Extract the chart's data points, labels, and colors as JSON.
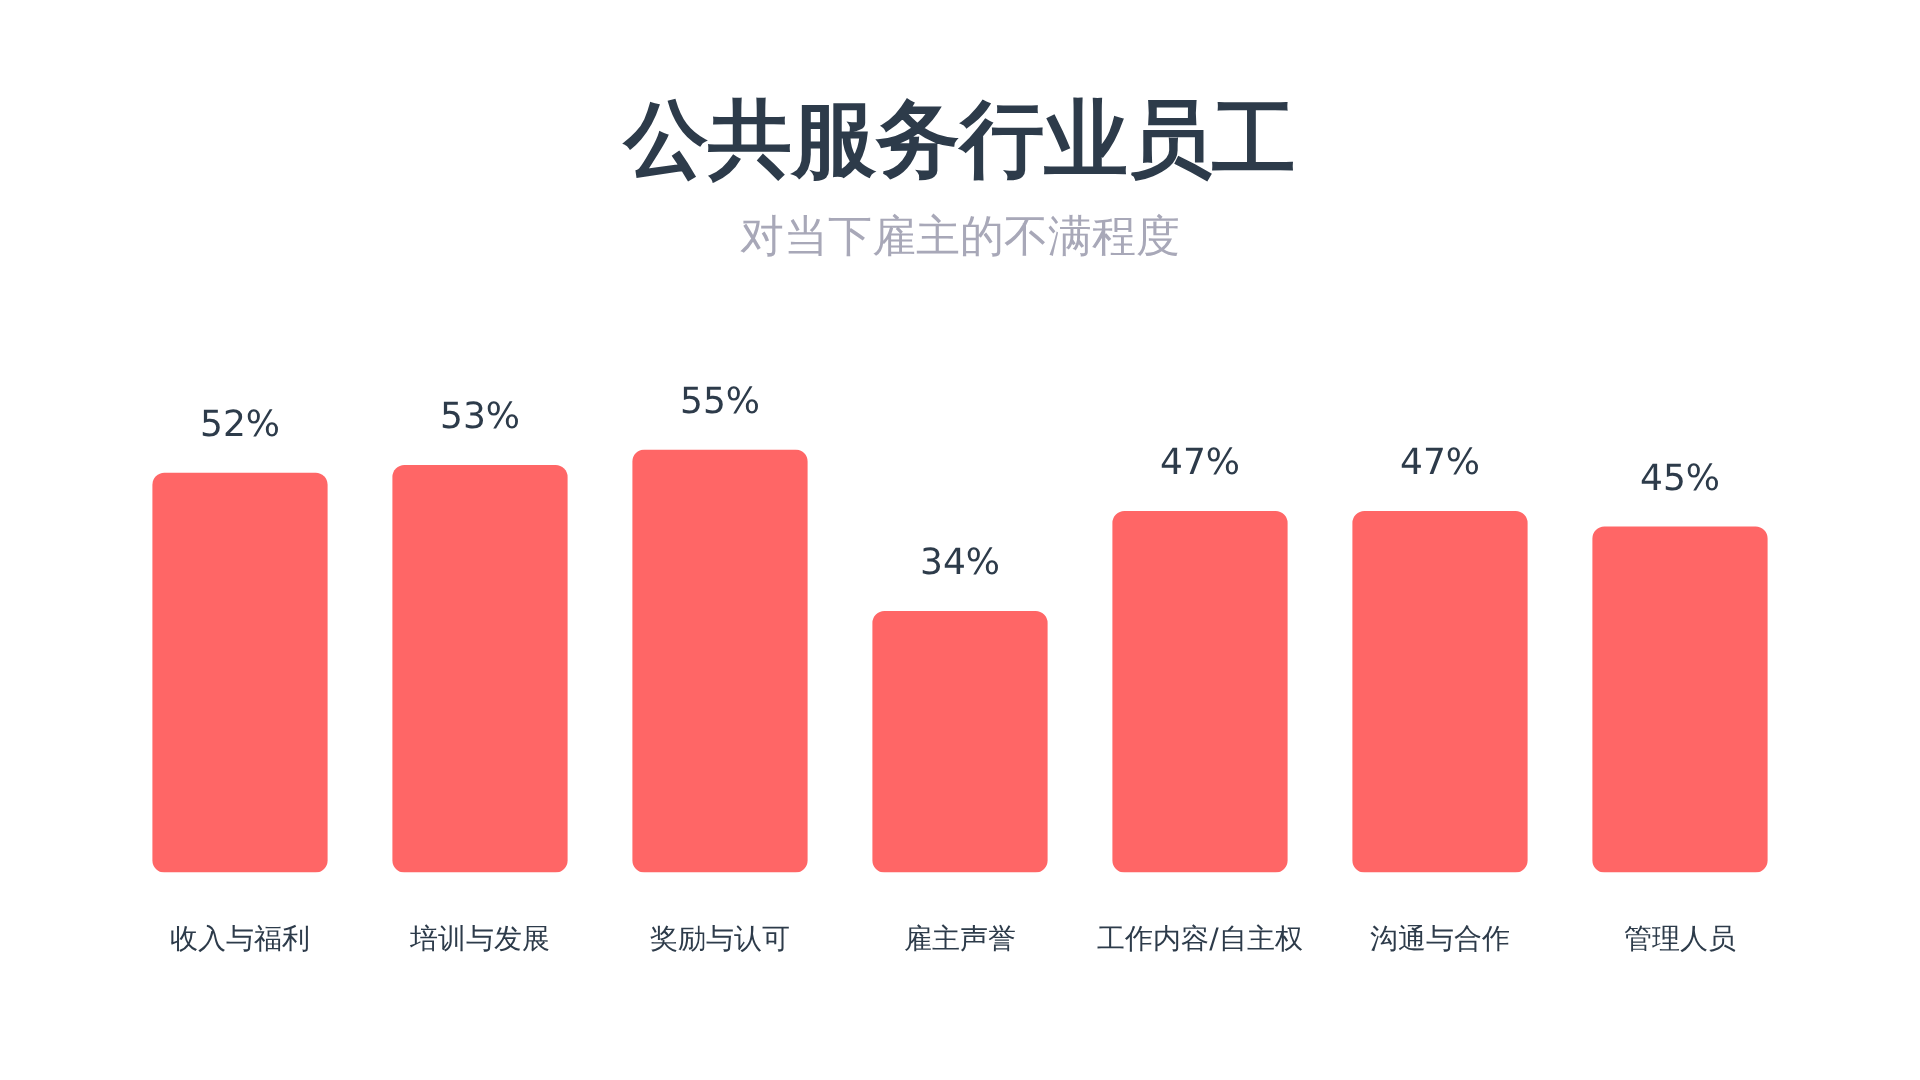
{
  "chart_data": {
    "type": "bar",
    "title": "公共服务行业员工",
    "subtitle": "对当下雇主的不满程度",
    "categories": [
      "收入与福利",
      "培训与发展",
      "奖励与认可",
      "雇主声誉",
      "工作内容/自主权",
      "沟通与合作",
      "管理人员"
    ],
    "values": [
      52,
      53,
      55,
      34,
      47,
      47,
      45
    ],
    "value_labels": [
      "52%",
      "53%",
      "55%",
      "34%",
      "47%",
      "47%",
      "45%"
    ],
    "color": "#ff6666",
    "ylim": [
      0,
      55
    ],
    "tick_labels": "x"
  }
}
